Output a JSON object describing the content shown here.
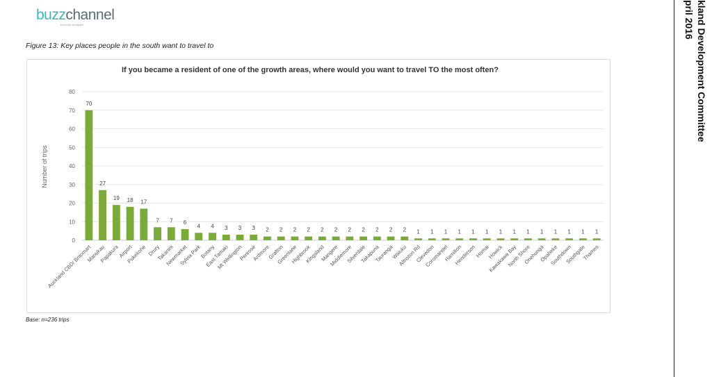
{
  "logo": {
    "part1": "buzz",
    "part2": "channel",
    "tagline": "Your Link to Insight"
  },
  "figure_caption": "Figure 13: Key places people in the south want to travel to",
  "base_note": "Base: n=236 trips",
  "side_header": {
    "line1": "kland Development Committee",
    "line2": "pril 2016"
  },
  "chart_data": {
    "type": "bar",
    "title": "If you became a resident of one of the growth areas, where would you want to travel TO the most often?",
    "ylabel": "Number of trips",
    "xlabel": "",
    "ylim": [
      0,
      80
    ],
    "yticks": [
      0,
      10,
      20,
      30,
      40,
      50,
      60,
      70,
      80
    ],
    "grid": true,
    "bar_color": "#7aab3a",
    "categories": [
      "Auckland CBD/ Britomart",
      "Manukau",
      "Papakura",
      "Airport",
      "Pukekohe",
      "Drury",
      "Takanini",
      "Newmarket",
      "Sylvia Park",
      "Botany",
      "East Tamaki",
      "Mt Wellington",
      "Penrose",
      "Ardmore",
      "Grafton",
      "Greenlane",
      "Highbrook",
      "Kingsland",
      "Mangere",
      "Middlemore",
      "Silverdale",
      "Takapuna",
      "Tauranga",
      "Waiuku",
      "Alfriston Rd",
      "Clevedon",
      "Coromandel",
      "Hamilton",
      "Henderson",
      "Homai",
      "Howick",
      "Kawakawa Bay",
      "North Shore",
      "Onehunga",
      "Opaheke",
      "Southdown",
      "Southgate",
      "Thames"
    ],
    "values": [
      70,
      27,
      19,
      18,
      17,
      7,
      7,
      6,
      4,
      4,
      3,
      3,
      3,
      2,
      2,
      2,
      2,
      2,
      2,
      2,
      2,
      2,
      2,
      2,
      1,
      1,
      1,
      1,
      1,
      1,
      1,
      1,
      1,
      1,
      1,
      1,
      1,
      1
    ]
  }
}
